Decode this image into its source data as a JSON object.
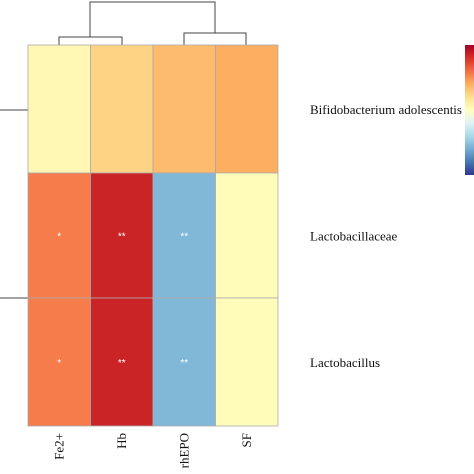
{
  "chart_data": {
    "type": "heatmap",
    "title": "",
    "columns": [
      "Fe2+",
      "Hb",
      "rhEPO",
      "SF"
    ],
    "rows": [
      "Bifidobacterium adolescentis",
      "Lactobacillaceae",
      "Lactobacillus"
    ],
    "values": [
      [
        0.05,
        0.25,
        0.35,
        0.4
      ],
      [
        0.55,
        0.85,
        -0.55,
        0.02
      ],
      [
        0.55,
        0.85,
        -0.55,
        0.02
      ]
    ],
    "significance": [
      [
        "",
        "",
        "",
        ""
      ],
      [
        "*",
        "**",
        "**",
        ""
      ],
      [
        "*",
        "**",
        "**",
        ""
      ]
    ],
    "color_scale": {
      "range": [
        -1,
        1
      ],
      "colors": [
        "#313695",
        "#4575b4",
        "#74add1",
        "#abd9e9",
        "#e0f3f8",
        "#ffffbf",
        "#fee090",
        "#fdae61",
        "#f46d43",
        "#d73027",
        "#a50026"
      ]
    },
    "column_dendrogram": true,
    "row_dendrogram": true,
    "legend_placement": "right"
  }
}
